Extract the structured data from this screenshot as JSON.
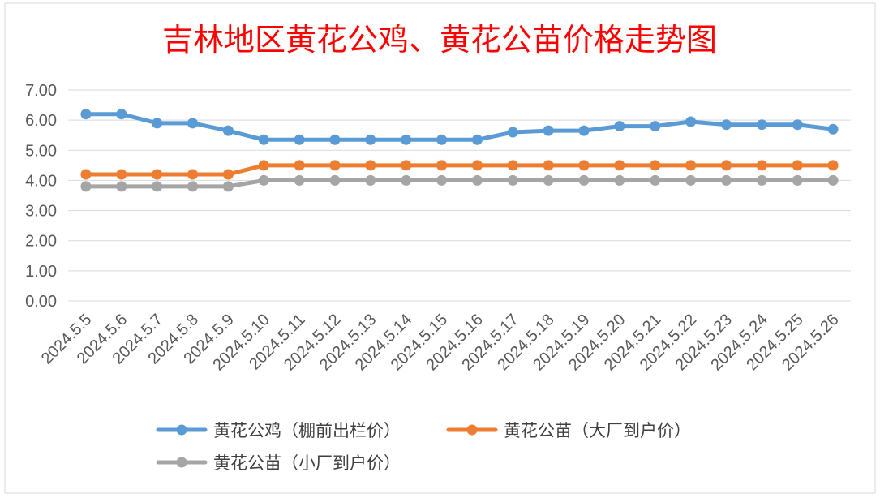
{
  "chart_data": {
    "type": "line",
    "title": "吉林地区黄花公鸡、黄花公苗价格走势图",
    "xlabel": "",
    "ylabel": "",
    "ylim": [
      0,
      7
    ],
    "yticks": [
      "0.00",
      "1.00",
      "2.00",
      "3.00",
      "4.00",
      "5.00",
      "6.00",
      "7.00"
    ],
    "grid": true,
    "legend_position": "bottom",
    "categories": [
      "2024.5.5",
      "2024.5.6",
      "2024.5.7",
      "2024.5.8",
      "2024.5.9",
      "2024.5.10",
      "2024.5.11",
      "2024.5.12",
      "2024.5.13",
      "2024.5.14",
      "2024.5.15",
      "2024.5.16",
      "2024.5.17",
      "2024.5.18",
      "2024.5.19",
      "2024.5.20",
      "2024.5.21",
      "2024.5.22",
      "2024.5.23",
      "2024.5.24",
      "2024.5.25",
      "2024.5.26"
    ],
    "series": [
      {
        "name": "黄花公鸡（棚前出栏价）",
        "color": "#5b9bd5",
        "values": [
          6.2,
          6.2,
          5.9,
          5.9,
          5.65,
          5.35,
          5.35,
          5.35,
          5.35,
          5.35,
          5.35,
          5.35,
          5.6,
          5.65,
          5.65,
          5.8,
          5.8,
          5.95,
          5.85,
          5.85,
          5.85,
          5.7
        ]
      },
      {
        "name": "黄花公苗（大厂到户价）",
        "color": "#ed7d31",
        "values": [
          4.2,
          4.2,
          4.2,
          4.2,
          4.2,
          4.5,
          4.5,
          4.5,
          4.5,
          4.5,
          4.5,
          4.5,
          4.5,
          4.5,
          4.5,
          4.5,
          4.5,
          4.5,
          4.5,
          4.5,
          4.5,
          4.5
        ]
      },
      {
        "name": "黄花公苗（小厂到户价）",
        "color": "#a5a5a5",
        "values": [
          3.8,
          3.8,
          3.8,
          3.8,
          3.8,
          4.0,
          4.0,
          4.0,
          4.0,
          4.0,
          4.0,
          4.0,
          4.0,
          4.0,
          4.0,
          4.0,
          4.0,
          4.0,
          4.0,
          4.0,
          4.0,
          4.0
        ]
      }
    ]
  }
}
